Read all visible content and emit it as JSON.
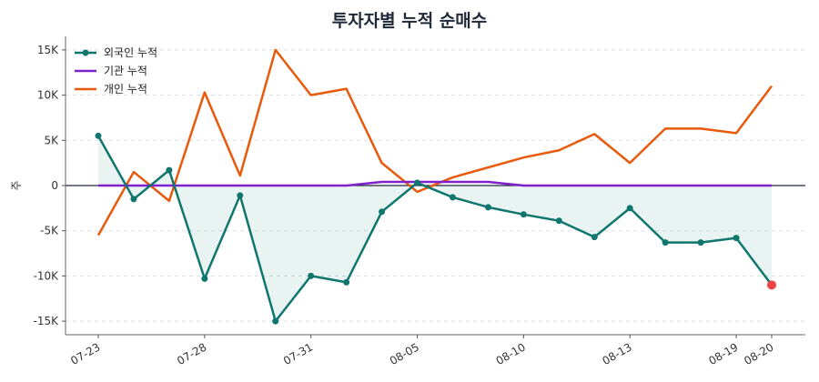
{
  "chart_data": {
    "type": "line",
    "title": "투자자별 누적 순매수",
    "xlabel": "",
    "ylabel": "주",
    "ylim": [
      -16500,
      16500
    ],
    "yticks": [
      15000,
      10000,
      5000,
      0,
      -5000,
      -10000,
      -15000
    ],
    "ytick_labels": [
      "15K",
      "10K",
      "5K",
      "0",
      "-5K",
      "-10K",
      "-15K"
    ],
    "x_tick_labels": [
      {
        "index": 0,
        "label": "07-23"
      },
      {
        "index": 3,
        "label": "07-28"
      },
      {
        "index": 6,
        "label": "07-31"
      },
      {
        "index": 9,
        "label": "08-05"
      },
      {
        "index": 12,
        "label": "08-10"
      },
      {
        "index": 15,
        "label": "08-13"
      },
      {
        "index": 18,
        "label": "08-19"
      },
      {
        "index": 19,
        "label": "08-20"
      }
    ],
    "grid": "horizontal dashed",
    "legend_position": "top-left",
    "zero_line": true,
    "series": [
      {
        "name": "외국인 누적",
        "color": "#0f766e",
        "markers": true,
        "fill_to_zero": true,
        "last_point_color": "#ef4444",
        "values": [
          5500,
          -1500,
          1700,
          -10300,
          -1100,
          -15000,
          -10000,
          -10700,
          -2900,
          300,
          -1300,
          -2400,
          -3200,
          -3900,
          -5700,
          -2500,
          -6300,
          -6300,
          -5800,
          -11000
        ]
      },
      {
        "name": "기관 누적",
        "color": "#7e22ce",
        "markers": false,
        "values": [
          0,
          0,
          0,
          0,
          0,
          0,
          0,
          0,
          400,
          400,
          400,
          400,
          0,
          0,
          0,
          0,
          0,
          0,
          0,
          0
        ]
      },
      {
        "name": "개인 누적",
        "color": "#e8590c",
        "markers": false,
        "values": [
          -5500,
          1500,
          -1700,
          10300,
          1100,
          15000,
          10000,
          10700,
          2500,
          -700,
          900,
          2000,
          3100,
          3900,
          5700,
          2500,
          6300,
          6300,
          5800,
          11000
        ]
      }
    ]
  }
}
